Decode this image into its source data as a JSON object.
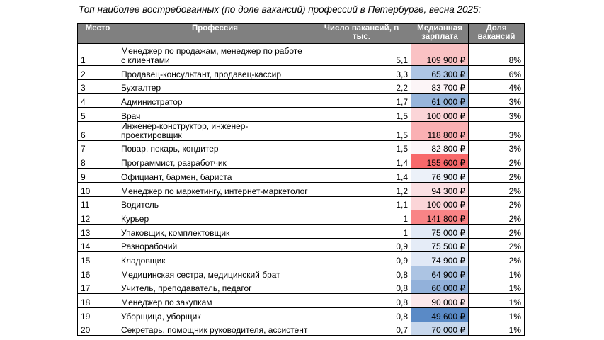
{
  "title": "Топ наиболее востребованных (по доле вакансий) профессий в Петербурге, весна 2025:",
  "headers": {
    "rank": "Место",
    "profession": "Профессия",
    "vacancies": "Число вакансий, в тыс.",
    "salary": "Медианная зарплата",
    "share": "Доля вакансий"
  },
  "header_bg": "#808080",
  "salary_color_scale": {
    "low": "#5a8ac6",
    "mid": "#fcfcff",
    "high": "#f8696b"
  },
  "rows": [
    {
      "rank": "1",
      "profession": "Менеджер по продажам, менеджер по работе с клиентами",
      "vacancies": "5,1",
      "salary": "109 900 ₽",
      "salary_value": 109900,
      "share": "8%"
    },
    {
      "rank": "2",
      "profession": "Продавец-консультант, продавец-кассир",
      "vacancies": "3,3",
      "salary": "65 300 ₽",
      "salary_value": 65300,
      "share": "6%"
    },
    {
      "rank": "3",
      "profession": "Бухгалтер",
      "vacancies": "2,2",
      "salary": "83 700 ₽",
      "salary_value": 83700,
      "share": "4%"
    },
    {
      "rank": "4",
      "profession": "Администратор",
      "vacancies": "1,7",
      "salary": "61 000 ₽",
      "salary_value": 61000,
      "share": "3%"
    },
    {
      "rank": "5",
      "profession": "Врач",
      "vacancies": "1,5",
      "salary": "100 000 ₽",
      "salary_value": 100000,
      "share": "3%"
    },
    {
      "rank": "6",
      "profession": "Инженер-конструктор, инженер-проектировщик",
      "vacancies": "1,5",
      "salary": "118 800 ₽",
      "salary_value": 118800,
      "share": "3%"
    },
    {
      "rank": "7",
      "profession": "Повар, пекарь, кондитер",
      "vacancies": "1,5",
      "salary": "82 800 ₽",
      "salary_value": 82800,
      "share": "3%"
    },
    {
      "rank": "8",
      "profession": "Программист, разработчик",
      "vacancies": "1,4",
      "salary": "155 600 ₽",
      "salary_value": 155600,
      "share": "2%"
    },
    {
      "rank": "9",
      "profession": "Официант, бармен, бариста",
      "vacancies": "1,4",
      "salary": "76 900 ₽",
      "salary_value": 76900,
      "share": "2%"
    },
    {
      "rank": "10",
      "profession": "Менеджер по маркетингу, интернет-маркетолог",
      "vacancies": "1,2",
      "salary": "94 300 ₽",
      "salary_value": 94300,
      "share": "2%"
    },
    {
      "rank": "11",
      "profession": "Водитель",
      "vacancies": "1,1",
      "salary": "100 000 ₽",
      "salary_value": 100000,
      "share": "2%"
    },
    {
      "rank": "12",
      "profession": "Курьер",
      "vacancies": "1",
      "salary": "141 800 ₽",
      "salary_value": 141800,
      "share": "2%"
    },
    {
      "rank": "13",
      "profession": "Упаковщик, комплектовщик",
      "vacancies": "1",
      "salary": "75 000 ₽",
      "salary_value": 75000,
      "share": "2%"
    },
    {
      "rank": "14",
      "profession": "Разнорабочий",
      "vacancies": "0,9",
      "salary": "75 500 ₽",
      "salary_value": 75500,
      "share": "2%"
    },
    {
      "rank": "15",
      "profession": "Кладовщик",
      "vacancies": "0,9",
      "salary": "74 900 ₽",
      "salary_value": 74900,
      "share": "2%"
    },
    {
      "rank": "16",
      "profession": "Медицинская сестра, медицинский брат",
      "vacancies": "0,8",
      "salary": "64 900 ₽",
      "salary_value": 64900,
      "share": "1%"
    },
    {
      "rank": "17",
      "profession": "Учитель, преподаватель, педагог",
      "vacancies": "0,8",
      "salary": "60 000 ₽",
      "salary_value": 60000,
      "share": "1%"
    },
    {
      "rank": "18",
      "profession": "Менеджер по закупкам",
      "vacancies": "0,8",
      "salary": "90 000 ₽",
      "salary_value": 90000,
      "share": "1%"
    },
    {
      "rank": "19",
      "profession": "Уборщица, уборщик",
      "vacancies": "0,8",
      "salary": "49 600 ₽",
      "salary_value": 49600,
      "share": "1%"
    },
    {
      "rank": "20",
      "profession": "Секретарь, помощник руководителя, ассистент",
      "vacancies": "0,7",
      "salary": "70 000 ₽",
      "salary_value": 70000,
      "share": "1%"
    }
  ]
}
